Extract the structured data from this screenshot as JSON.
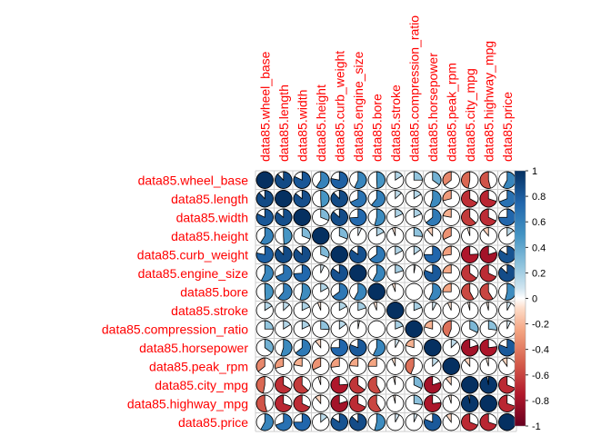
{
  "chart_data": {
    "type": "heatmap",
    "style": "corrplot-pie",
    "variables": [
      "data85.wheel_base",
      "data85.length",
      "data85.width",
      "data85.height",
      "data85.curb_weight",
      "data85.engine_size",
      "data85.bore",
      "data85.stroke",
      "data85.compression_ratio",
      "data85.horsepower",
      "data85.peak_rpm",
      "data85.city_mpg",
      "data85.highway_mpg",
      "data85.price"
    ],
    "matrix": [
      [
        1.0,
        0.88,
        0.82,
        0.59,
        0.78,
        0.57,
        0.49,
        0.16,
        0.25,
        0.35,
        -0.36,
        -0.47,
        -0.54,
        0.58
      ],
      [
        0.88,
        1.0,
        0.86,
        0.49,
        0.88,
        0.68,
        0.61,
        0.13,
        0.16,
        0.55,
        -0.29,
        -0.67,
        -0.7,
        0.69
      ],
      [
        0.82,
        0.86,
        1.0,
        0.31,
        0.87,
        0.74,
        0.54,
        0.18,
        0.18,
        0.64,
        -0.22,
        -0.63,
        -0.68,
        0.75
      ],
      [
        0.59,
        0.49,
        0.31,
        1.0,
        0.31,
        0.07,
        0.17,
        -0.06,
        0.26,
        -0.11,
        -0.32,
        -0.05,
        -0.11,
        0.14
      ],
      [
        0.78,
        0.88,
        0.87,
        0.31,
        1.0,
        0.85,
        0.65,
        0.17,
        0.15,
        0.75,
        -0.27,
        -0.76,
        -0.8,
        0.84
      ],
      [
        0.57,
        0.68,
        0.74,
        0.07,
        0.85,
        1.0,
        0.58,
        0.2,
        0.03,
        0.81,
        -0.24,
        -0.65,
        -0.68,
        0.87
      ],
      [
        0.49,
        0.61,
        0.54,
        0.17,
        0.65,
        0.58,
        1.0,
        -0.06,
        0.0,
        0.57,
        -0.25,
        -0.58,
        -0.59,
        0.54
      ],
      [
        0.16,
        0.13,
        0.18,
        -0.06,
        0.17,
        0.2,
        -0.06,
        1.0,
        0.19,
        0.08,
        -0.07,
        -0.04,
        -0.04,
        0.08
      ],
      [
        0.25,
        0.16,
        0.18,
        0.26,
        0.15,
        0.03,
        0.0,
        0.19,
        1.0,
        -0.21,
        -0.44,
        0.32,
        0.27,
        0.07
      ],
      [
        0.35,
        0.55,
        0.64,
        -0.11,
        0.75,
        0.81,
        0.57,
        0.08,
        -0.21,
        1.0,
        0.13,
        -0.8,
        -0.77,
        0.81
      ],
      [
        -0.36,
        -0.29,
        -0.22,
        -0.32,
        -0.27,
        -0.24,
        -0.25,
        -0.07,
        -0.44,
        0.13,
        1.0,
        -0.11,
        -0.05,
        -0.1
      ],
      [
        -0.47,
        -0.67,
        -0.63,
        -0.05,
        -0.76,
        -0.65,
        -0.58,
        -0.04,
        0.32,
        -0.8,
        -0.11,
        1.0,
        0.97,
        -0.69
      ],
      [
        -0.54,
        -0.7,
        -0.68,
        -0.11,
        -0.8,
        -0.68,
        -0.59,
        -0.04,
        0.27,
        -0.77,
        -0.05,
        0.97,
        1.0,
        -0.7
      ],
      [
        0.58,
        0.69,
        0.75,
        0.14,
        0.84,
        0.87,
        0.54,
        0.08,
        0.07,
        0.81,
        -0.1,
        -0.69,
        -0.7,
        1.0
      ]
    ],
    "colorbar": {
      "range": [
        -1,
        1
      ],
      "ticks": [
        "1",
        "0.8",
        "0.6",
        "0.4",
        "0.2",
        "0",
        "-0.2",
        "-0.4",
        "-0.6",
        "-0.8",
        "-1"
      ]
    },
    "colors": {
      "label": "#ff0000",
      "negative_end": "#67001f",
      "neutral": "#ffffff",
      "positive_end": "#053061",
      "grid": "#cccccc"
    }
  }
}
